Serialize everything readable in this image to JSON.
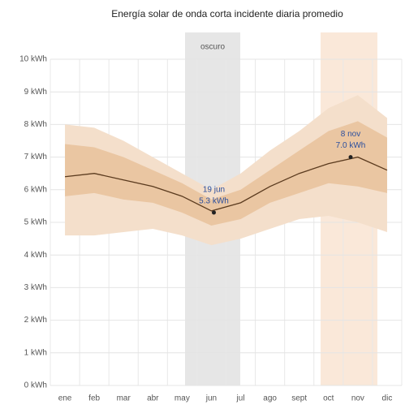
{
  "chart_data": {
    "type": "line",
    "title": "Energía solar de onda corta incidente diaria promedio",
    "categories": [
      "ene",
      "feb",
      "mar",
      "abr",
      "may",
      "jun",
      "jul",
      "ago",
      "sept",
      "oct",
      "nov",
      "dic"
    ],
    "values": [
      6.4,
      6.5,
      6.3,
      6.1,
      5.8,
      5.35,
      5.6,
      6.1,
      6.5,
      6.8,
      7.0,
      6.6
    ],
    "color": "#5a3a1e",
    "bands": [
      {
        "low": [
          4.6,
          4.6,
          4.7,
          4.8,
          4.6,
          4.3,
          4.5,
          4.8,
          5.1,
          5.2,
          5.0,
          4.7
        ],
        "high": [
          8.0,
          7.9,
          7.5,
          7.0,
          6.5,
          6.0,
          6.5,
          7.2,
          7.8,
          8.5,
          8.9,
          8.2
        ],
        "color": "#f4dfcb"
      },
      {
        "low": [
          5.8,
          5.9,
          5.7,
          5.6,
          5.3,
          4.9,
          5.1,
          5.6,
          5.9,
          6.2,
          6.1,
          5.9
        ],
        "high": [
          7.4,
          7.3,
          7.0,
          6.6,
          6.2,
          5.7,
          6.0,
          6.6,
          7.2,
          7.8,
          8.1,
          7.6
        ],
        "color": "#eac6a2"
      }
    ],
    "dark_period_label": "oscuro",
    "annotations": [
      {
        "date": "19 jun",
        "value": 5.3,
        "label": "5.3 kWh"
      },
      {
        "date": "8 nov",
        "value": 7.0,
        "label": "7.0 kWh"
      }
    ],
    "ylim": [
      0,
      10
    ],
    "yticks": [
      {
        "value": 0,
        "label": "0 kWh"
      },
      {
        "value": 1,
        "label": "1 kWh"
      },
      {
        "value": 2,
        "label": "2 kWh"
      },
      {
        "value": 3,
        "label": "3 kWh"
      },
      {
        "value": 4,
        "label": "4 kWh"
      },
      {
        "value": 5,
        "label": "5 kWh"
      },
      {
        "value": 6,
        "label": "6 kWh"
      },
      {
        "value": 7,
        "label": "7 kWh"
      },
      {
        "value": 8,
        "label": "8 kWh"
      },
      {
        "value": 9,
        "label": "9 kWh"
      },
      {
        "value": 10,
        "label": "10 kWh"
      }
    ],
    "grid": true
  }
}
